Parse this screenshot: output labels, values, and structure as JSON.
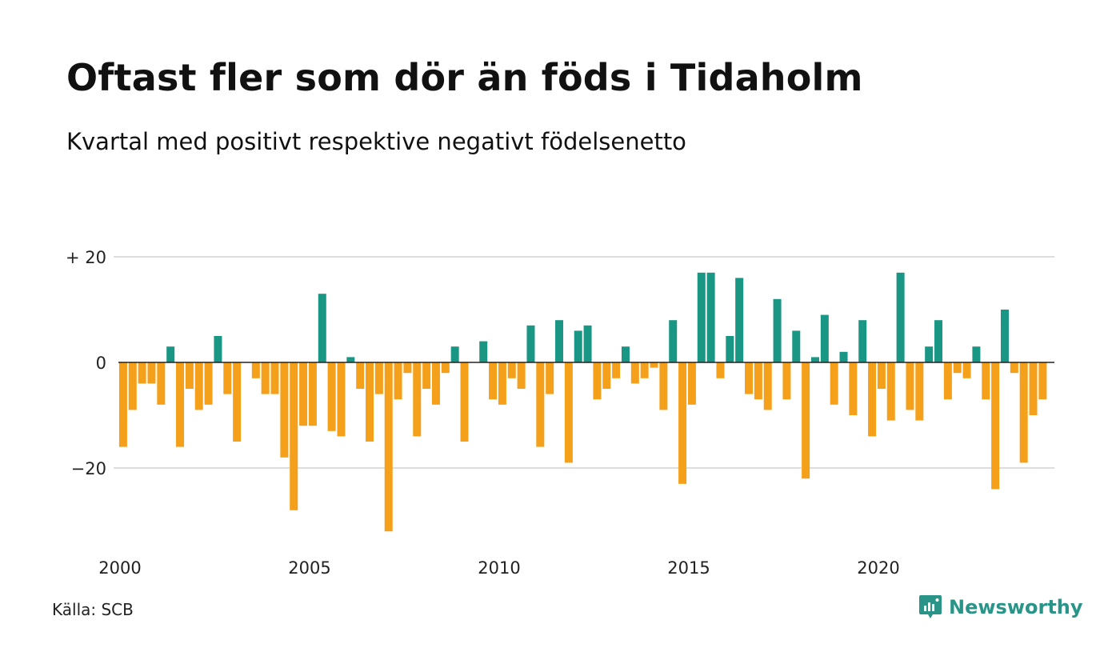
{
  "title": "Oftast fler som dör än föds i Tidaholm",
  "subtitle": "Kvartal med positivt respektive negativt födelsenetto",
  "source": "Källa: SCB",
  "brand": "Newsworthy",
  "colors": {
    "positive": "#1a9685",
    "negative": "#f5a01a",
    "grid": "#dddddd",
    "zero": "#222222",
    "brand": "#2a9488"
  },
  "chart_data": {
    "type": "bar",
    "y_tick_labels": [
      "+ 20",
      "0",
      "−20"
    ],
    "y_ticks": [
      20,
      0,
      -20
    ],
    "ylim": [
      -33,
      20
    ],
    "x_tick_labels": [
      "2000",
      "2005",
      "2010",
      "2015",
      "2020"
    ],
    "x_ticks": [
      2000,
      2005,
      2010,
      2015,
      2020
    ],
    "start_year": 2000,
    "grid": true,
    "values": [
      -16,
      -9,
      -4,
      -4,
      -8,
      3,
      -16,
      -5,
      -9,
      -8,
      5,
      -6,
      -15,
      0,
      -3,
      -6,
      -6,
      -18,
      -28,
      -12,
      -12,
      13,
      -13,
      -14,
      1,
      -5,
      -15,
      -6,
      -32,
      -7,
      -2,
      -14,
      -5,
      -8,
      -2,
      3,
      -15,
      0,
      4,
      -7,
      -8,
      -3,
      -5,
      7,
      -16,
      -6,
      8,
      -19,
      6,
      7,
      -7,
      -5,
      -3,
      3,
      -4,
      -3,
      -1,
      -9,
      8,
      -23,
      -8,
      17,
      17,
      -3,
      5,
      16,
      -6,
      -7,
      -9,
      12,
      -7,
      6,
      -22,
      1,
      9,
      -8,
      2,
      -10,
      8,
      -14,
      -5,
      -11,
      17,
      -9,
      -11,
      3,
      8,
      -7,
      -2,
      -3,
      3,
      -7,
      -24,
      10,
      -2,
      -19,
      -10,
      -7
    ]
  }
}
